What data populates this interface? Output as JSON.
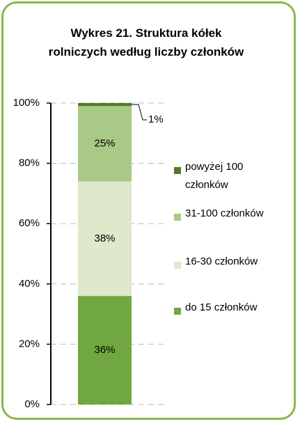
{
  "chart_data": {
    "type": "stacked-bar",
    "title": "Wykres 21. Struktura kółek rolniczych według liczby członków",
    "categories": [
      null
    ],
    "series": [
      {
        "name": "do 15 członków",
        "color": "#70a740",
        "values": [
          36
        ],
        "value_labels": [
          "36%"
        ]
      },
      {
        "name": "16-30 członków",
        "color": "#dfe8cb",
        "values": [
          38
        ],
        "value_labels": [
          "38%"
        ]
      },
      {
        "name": "31-100 członków",
        "color": "#a9c986",
        "values": [
          25
        ],
        "value_labels": [
          "25%"
        ]
      },
      {
        "name": "powyżej 100 członków",
        "color": "#4f7a2b",
        "values": [
          1
        ],
        "value_labels": [
          "1%"
        ]
      }
    ],
    "ylim": [
      0,
      100
    ],
    "yticks": [
      {
        "value": 0,
        "label": "0%"
      },
      {
        "value": 20,
        "label": "20%"
      },
      {
        "value": 40,
        "label": "40%"
      },
      {
        "value": 60,
        "label": "60%"
      },
      {
        "value": 80,
        "label": "80%"
      },
      {
        "value": 100,
        "label": "100%"
      }
    ],
    "grid": true,
    "legend": "right"
  }
}
